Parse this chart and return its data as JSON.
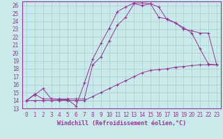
{
  "xlabel": "Windchill (Refroidissement éolien,°C)",
  "xlim": [
    -0.5,
    23.5
  ],
  "ylim": [
    13,
    26.5
  ],
  "xticks": [
    0,
    1,
    2,
    3,
    4,
    5,
    6,
    7,
    8,
    9,
    10,
    11,
    12,
    13,
    14,
    15,
    16,
    17,
    18,
    19,
    20,
    21,
    22,
    23
  ],
  "yticks": [
    13,
    14,
    15,
    16,
    17,
    18,
    19,
    20,
    21,
    22,
    23,
    24,
    25,
    26
  ],
  "bg_color": "#c8eaea",
  "line_color": "#993399",
  "grid_color": "#aacccc",
  "line1_x": [
    0,
    1,
    2,
    3,
    4,
    5,
    6,
    7,
    8,
    9,
    10,
    11,
    12,
    13,
    14,
    15,
    16,
    17,
    18,
    19,
    20,
    21,
    22,
    23
  ],
  "line1_y": [
    14.0,
    14.8,
    14.2,
    14.2,
    14.1,
    14.1,
    13.3,
    16.2,
    19.2,
    21.2,
    23.1,
    25.2,
    25.8,
    26.3,
    26.3,
    26.2,
    24.5,
    24.3,
    23.8,
    23.2,
    22.5,
    20.5,
    18.6,
    18.5
  ],
  "line2_x": [
    0,
    1,
    2,
    3,
    4,
    5,
    6,
    7,
    8,
    9,
    10,
    11,
    12,
    13,
    14,
    15,
    16,
    17,
    18,
    19,
    20,
    21,
    22,
    23
  ],
  "line2_y": [
    14.0,
    14.7,
    15.5,
    14.2,
    14.2,
    14.2,
    14.2,
    14.2,
    18.5,
    19.5,
    21.5,
    23.5,
    24.5,
    26.2,
    26.0,
    26.2,
    25.8,
    24.2,
    23.8,
    23.0,
    22.8,
    22.5,
    22.5,
    18.5
  ],
  "line3_x": [
    0,
    1,
    2,
    3,
    4,
    5,
    6,
    7,
    8,
    9,
    10,
    11,
    12,
    13,
    14,
    15,
    16,
    17,
    18,
    19,
    20,
    21,
    22,
    23
  ],
  "line3_y": [
    14.0,
    14.0,
    14.0,
    14.0,
    14.0,
    14.0,
    14.0,
    14.0,
    14.5,
    15.0,
    15.5,
    16.0,
    16.5,
    17.0,
    17.5,
    17.8,
    17.9,
    18.0,
    18.2,
    18.3,
    18.4,
    18.5,
    18.5,
    18.5
  ],
  "tick_fontsize": 5.5,
  "xlabel_fontsize": 6.0
}
